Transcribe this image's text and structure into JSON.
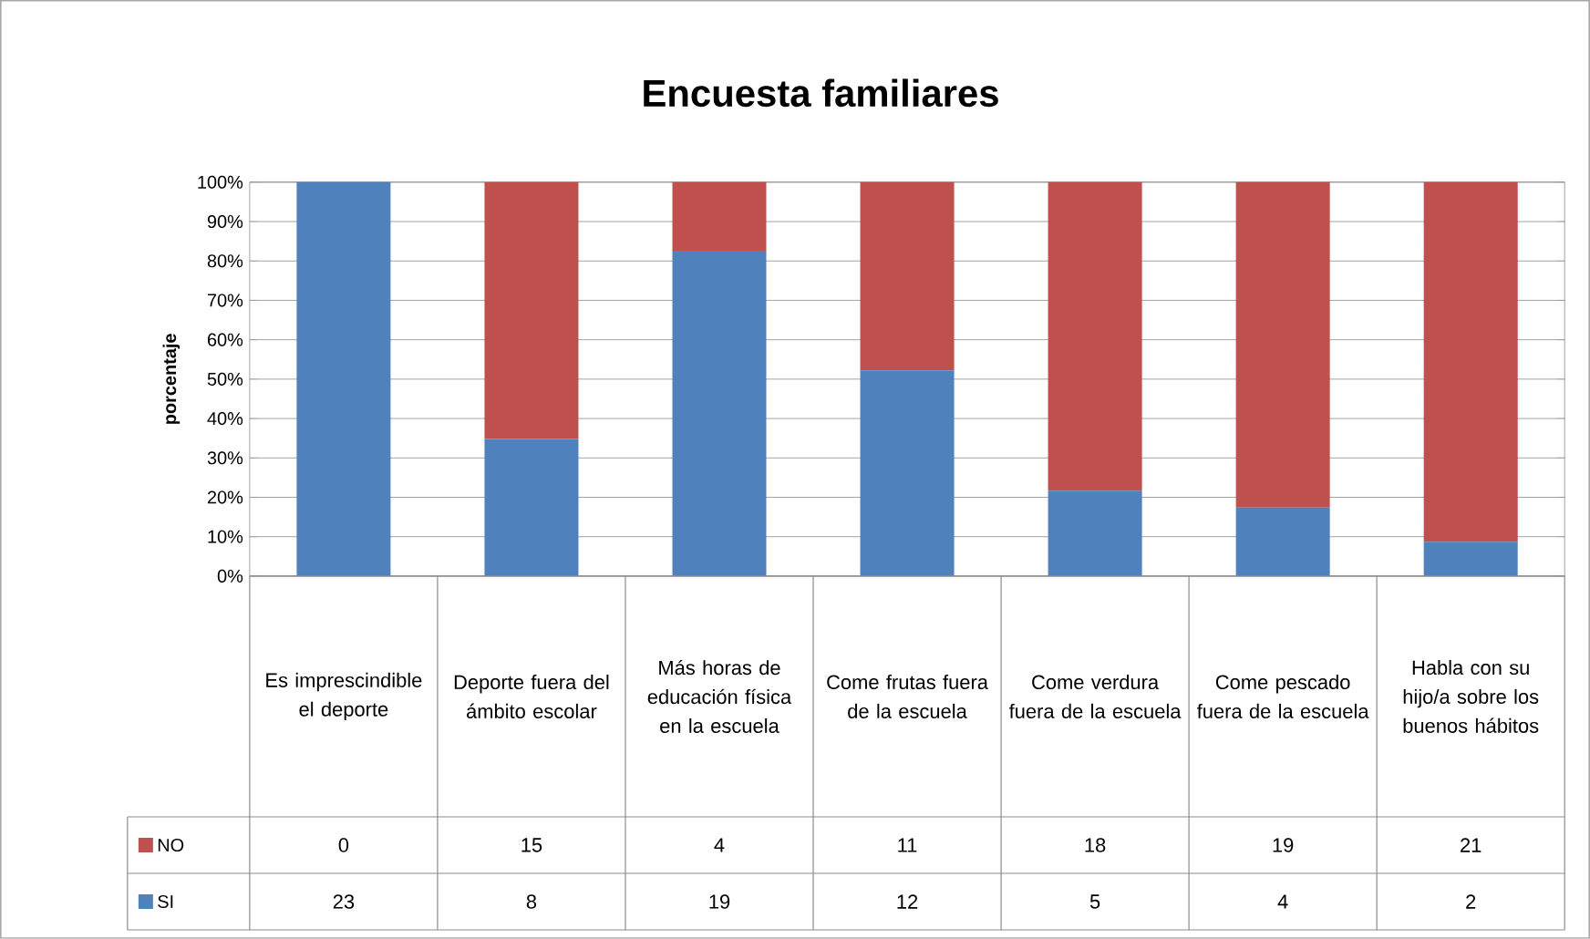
{
  "chart_data": {
    "type": "bar",
    "title": "Encuesta familiares",
    "ylabel": "porcentaje",
    "stacked": true,
    "grid": "y",
    "legend": "bottom left",
    "categories": [
      "Es imprescindible el deporte",
      "Deporte fuera del ámbito escolar",
      "Más horas de educación física en la escuela",
      "Come frutas fuera de la escuela",
      "Come verdura fuera de la escuela",
      "Come pescado fuera de la escuela",
      "Habla con su hijo/a sobre los buenos hábitos"
    ],
    "series": [
      {
        "name": "SI",
        "color": "#4f81bd",
        "values": [
          100,
          34.8,
          82.6,
          52.2,
          21.7,
          17.4,
          8.7
        ]
      },
      {
        "name": "NO",
        "color": "#c0504d",
        "values": [
          0,
          65.2,
          17.4,
          47.8,
          78.3,
          82.6,
          91.3
        ]
      }
    ],
    "annotations": [
      "0",
      "15",
      "4",
      "11",
      "18",
      "19",
      "21",
      "23",
      "8",
      "19",
      "12",
      "5",
      "4",
      "2"
    ],
    "ylim": [
      0,
      100
    ],
    "yticks": [
      {
        "value": 0,
        "label": "0%"
      },
      {
        "value": 10,
        "label": "10%"
      },
      {
        "value": 20,
        "label": "20%"
      },
      {
        "value": 30,
        "label": "30%"
      },
      {
        "value": 40,
        "label": "40%"
      },
      {
        "value": 50,
        "label": "50%"
      },
      {
        "value": 60,
        "label": "60%"
      },
      {
        "value": 70,
        "label": "70%"
      },
      {
        "value": 80,
        "label": "80%"
      },
      {
        "value": 90,
        "label": "90%"
      },
      {
        "value": 100,
        "label": "100%"
      }
    ]
  }
}
